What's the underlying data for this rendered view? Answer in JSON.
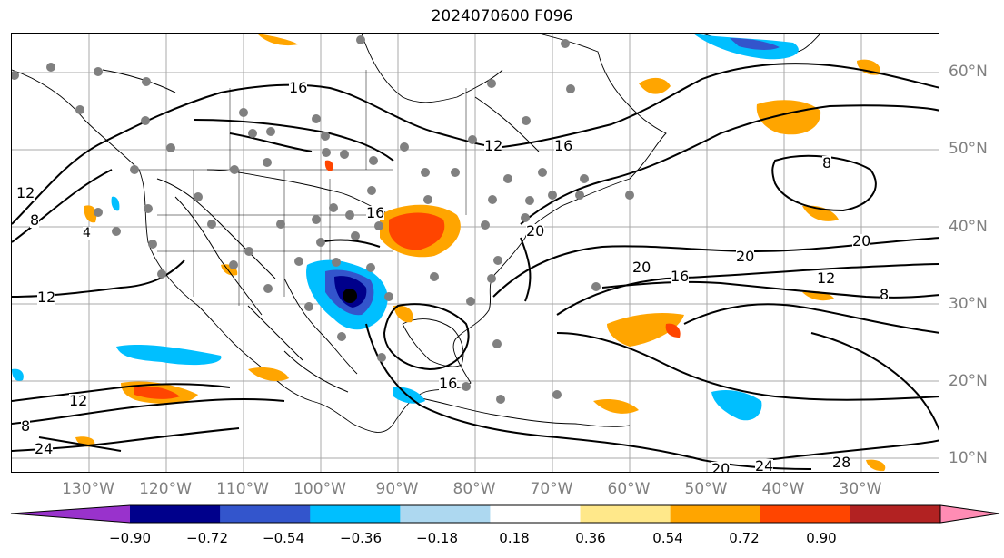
{
  "title": "2024070600 F096",
  "lat_labels": [
    "60°N",
    "50°N",
    "40°N",
    "30°N",
    "20°N",
    "10°N"
  ],
  "lon_labels": [
    "130°W",
    "120°W",
    "110°W",
    "100°W",
    "90°W",
    "80°W",
    "70°W",
    "60°W",
    "50°W",
    "40°W",
    "30°W"
  ],
  "contour_labels": [
    "16",
    "12",
    "16",
    "8",
    "20",
    "16",
    "20",
    "12",
    "16",
    "20",
    "20",
    "8",
    "12",
    "8",
    "24",
    "12",
    "12",
    "16",
    "8",
    "20",
    "24",
    "28",
    "4"
  ],
  "colorbar": {
    "ticks": [
      "−0.90",
      "−0.72",
      "−0.54",
      "−0.36",
      "−0.18",
      "0.18",
      "0.36",
      "0.54",
      "0.72",
      "0.90"
    ],
    "colors": [
      "#9932cc",
      "#00008b",
      "#3355cc",
      "#00bfff",
      "#add8f0",
      "#ffffff",
      "#ffe88a",
      "#ffa500",
      "#ff4500",
      "#b22222",
      "#ff8cb4"
    ]
  }
}
